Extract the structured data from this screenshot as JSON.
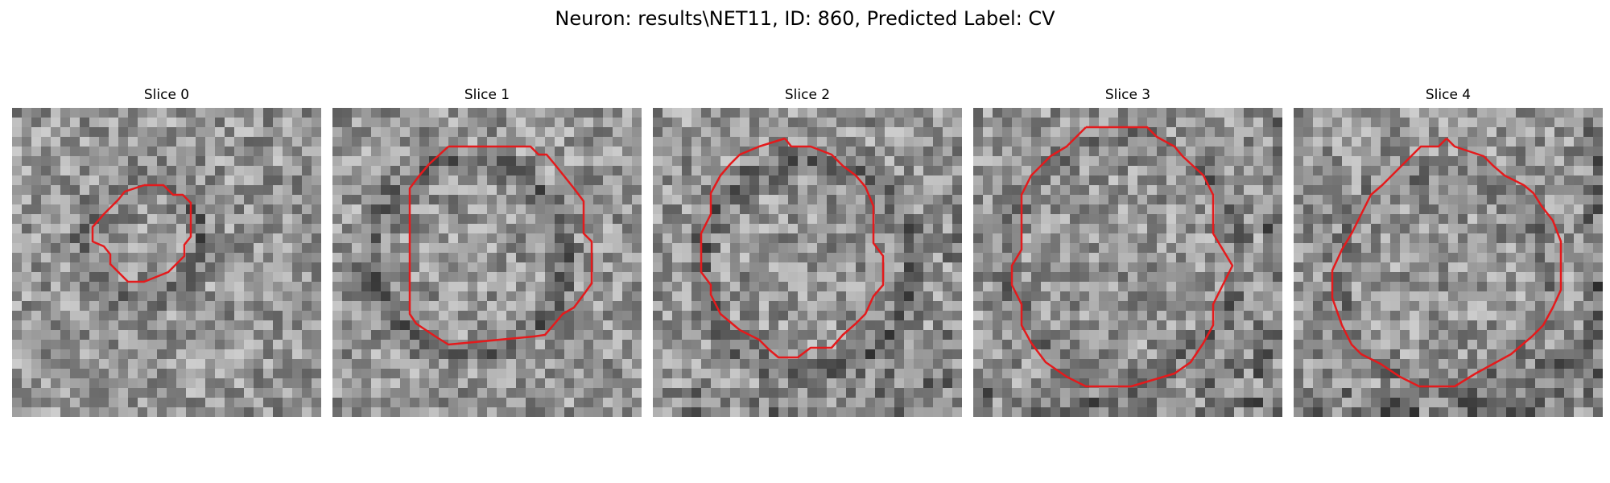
{
  "figure": {
    "title": "Neuron: results\\NET11, ID: 860, Predicted Label: CV",
    "contour_color": "#e41a1c"
  },
  "slices": [
    {
      "label": "Slice 0"
    },
    {
      "label": "Slice 1"
    },
    {
      "label": "Slice 2"
    },
    {
      "label": "Slice 3"
    },
    {
      "label": "Slice 4"
    }
  ]
}
